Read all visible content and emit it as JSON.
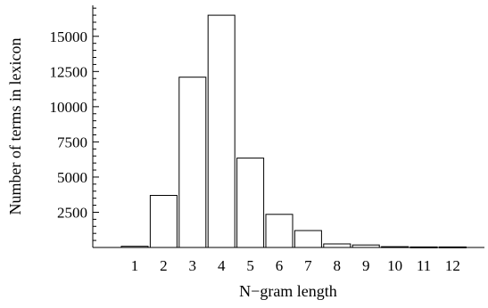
{
  "chart_data": {
    "type": "bar",
    "title": "",
    "xlabel": "N−gram length",
    "ylabel": "Number of terms in lexicon",
    "categories": [
      "1",
      "2",
      "3",
      "4",
      "5",
      "6",
      "7",
      "8",
      "9",
      "10",
      "11",
      "12"
    ],
    "values": [
      80,
      3700,
      12100,
      16500,
      6350,
      2350,
      1200,
      250,
      180,
      60,
      40,
      40
    ],
    "yticks": [
      2500,
      5000,
      7500,
      10000,
      12500,
      15000
    ],
    "ytick_labels": [
      "2500",
      "5000",
      "7500",
      "10000",
      "12500",
      "15000"
    ],
    "ylim": [
      0,
      17200
    ],
    "grid": false,
    "legend": false
  }
}
